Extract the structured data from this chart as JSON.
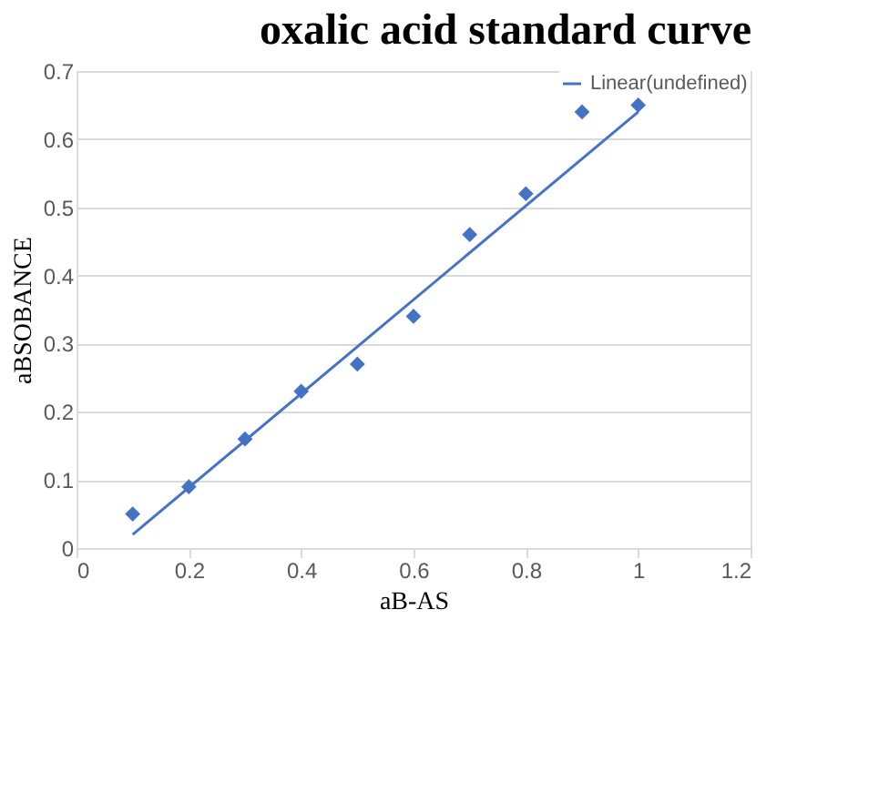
{
  "chart_data": {
    "type": "scatter",
    "title": "oxalic acid standard curve",
    "xlabel": "aB-AS",
    "ylabel": "aBSOBANCE",
    "x": [
      0.1,
      0.2,
      0.3,
      0.4,
      0.5,
      0.6,
      0.7,
      0.8,
      0.9,
      1.0
    ],
    "series": [
      {
        "type": "scatter",
        "color": "#4472c4",
        "marker": "diamond",
        "values": [
          0.05,
          0.09,
          0.16,
          0.23,
          0.27,
          0.34,
          0.46,
          0.52,
          0.64,
          0.65
        ]
      },
      {
        "type": "line",
        "name": "Linear(undefined)",
        "color": "#4472c4",
        "line_style": "solid",
        "x": [
          0.1,
          1.0
        ],
        "values": [
          0.02,
          0.64
        ]
      }
    ],
    "xlim": [
      0,
      1.2
    ],
    "xticks": [
      0,
      0.2,
      0.4,
      0.6,
      0.8,
      1,
      1.2
    ],
    "ylim": [
      0,
      0.7
    ],
    "yticks": [
      0,
      0.1,
      0.2,
      0.3,
      0.4,
      0.5,
      0.6,
      0.7
    ],
    "grid": "y",
    "legend": "top right"
  }
}
